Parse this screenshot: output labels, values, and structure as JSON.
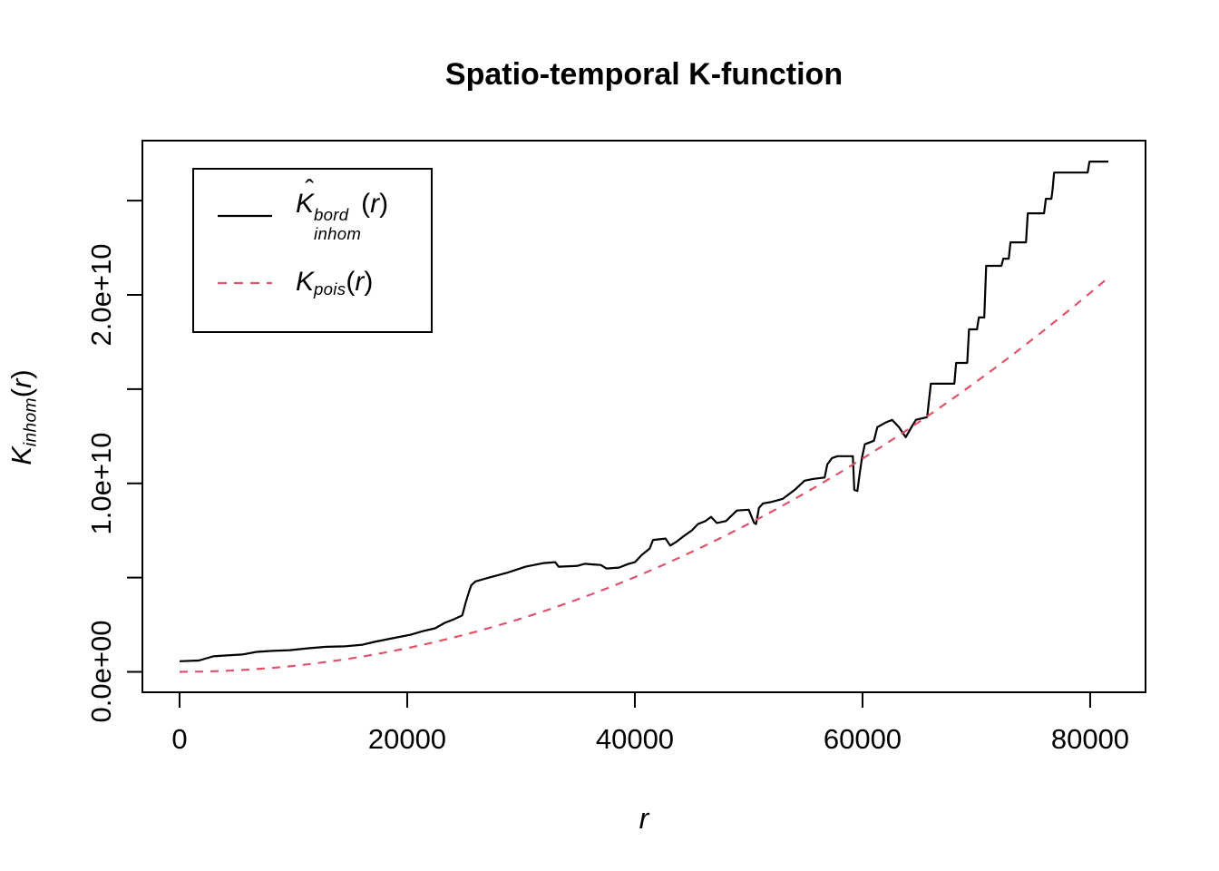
{
  "title": "Spatio-temporal K-function",
  "colors": {
    "foreground": "#000000",
    "background": "#FFFFFF",
    "poisson_line": "#DF536B"
  },
  "axes": {
    "x": {
      "label_var": "r"
    },
    "y": {
      "label": {
        "base": "K",
        "sub": "inhom",
        "open": "(",
        "var": "r",
        "close": ")"
      }
    }
  },
  "legend": {
    "entries": [
      {
        "base": "K",
        "hat": "ˆ",
        "sup": "bord",
        "sub": "inhom",
        "open": "(",
        "var": "r",
        "close": ")"
      },
      {
        "base": "K",
        "sub": "pois",
        "open": "(",
        "var": "r",
        "close": ")"
      }
    ]
  },
  "chart_data": {
    "type": "line",
    "title": "Spatio-temporal K-function",
    "xlabel": "r",
    "ylabel": "K_inhom(r)",
    "grid": false,
    "legend_position": "top-left",
    "xlim": [
      -3264,
      84864
    ],
    "ylim_e10": [
      -0.1084,
      2.8184
    ],
    "y_unit": "1e+10",
    "x_ticks": [
      0,
      20000,
      40000,
      60000,
      80000
    ],
    "x_tick_labels": [
      "0",
      "20000",
      "40000",
      "60000",
      "80000"
    ],
    "y_ticks_e10": [
      0,
      0.5,
      1.0,
      1.5,
      2.0,
      2.5
    ],
    "y_tick_labels": [
      {
        "value_e10": 0,
        "label": "0.0e+00"
      },
      {
        "value_e10": 1,
        "label": "1.0e+10"
      },
      {
        "value_e10": 2,
        "label": "2.0e+10"
      }
    ],
    "series": [
      {
        "name": "Khat_inhom_bord",
        "label": "Khat^bord_inhom(r)",
        "style": "solid",
        "color": "#000000",
        "points_r_Ke10": [
          [
            0,
            0.056
          ],
          [
            1700,
            0.06
          ],
          [
            2950,
            0.082
          ],
          [
            4140,
            0.087
          ],
          [
            5500,
            0.092
          ],
          [
            6770,
            0.106
          ],
          [
            8120,
            0.111
          ],
          [
            9710,
            0.115
          ],
          [
            11300,
            0.125
          ],
          [
            12900,
            0.133
          ],
          [
            14500,
            0.135
          ],
          [
            16080,
            0.144
          ],
          [
            17100,
            0.159
          ],
          [
            18700,
            0.178
          ],
          [
            20300,
            0.197
          ],
          [
            21400,
            0.216
          ],
          [
            22450,
            0.231
          ],
          [
            23300,
            0.26
          ],
          [
            24040,
            0.277
          ],
          [
            24840,
            0.3
          ],
          [
            25150,
            0.37
          ],
          [
            25450,
            0.43
          ],
          [
            25640,
            0.46
          ],
          [
            26000,
            0.48
          ],
          [
            27200,
            0.5
          ],
          [
            28800,
            0.526
          ],
          [
            30400,
            0.558
          ],
          [
            32000,
            0.577
          ],
          [
            33000,
            0.582
          ],
          [
            33300,
            0.558
          ],
          [
            34950,
            0.562
          ],
          [
            35600,
            0.573
          ],
          [
            36300,
            0.57
          ],
          [
            37000,
            0.567
          ],
          [
            37500,
            0.548
          ],
          [
            38600,
            0.553
          ],
          [
            39400,
            0.572
          ],
          [
            40000,
            0.582
          ],
          [
            40600,
            0.62
          ],
          [
            41300,
            0.654
          ],
          [
            41600,
            0.7
          ],
          [
            42700,
            0.707
          ],
          [
            43100,
            0.67
          ],
          [
            43600,
            0.688
          ],
          [
            44300,
            0.72
          ],
          [
            45000,
            0.75
          ],
          [
            45540,
            0.784
          ],
          [
            46200,
            0.8
          ],
          [
            46700,
            0.822
          ],
          [
            47200,
            0.79
          ],
          [
            48000,
            0.8
          ],
          [
            48960,
            0.856
          ],
          [
            50000,
            0.86
          ],
          [
            50480,
            0.79
          ],
          [
            50650,
            0.784
          ],
          [
            50900,
            0.87
          ],
          [
            51270,
            0.894
          ],
          [
            51900,
            0.9
          ],
          [
            53000,
            0.918
          ],
          [
            54060,
            0.966
          ],
          [
            54900,
            1.014
          ],
          [
            55700,
            1.024
          ],
          [
            56670,
            1.031
          ],
          [
            56900,
            1.1
          ],
          [
            57320,
            1.134
          ],
          [
            57800,
            1.144
          ],
          [
            59150,
            1.144
          ],
          [
            59280,
            0.966
          ],
          [
            59550,
            0.96
          ],
          [
            59750,
            1.05
          ],
          [
            59950,
            1.134
          ],
          [
            60200,
            1.207
          ],
          [
            61000,
            1.226
          ],
          [
            61300,
            1.298
          ],
          [
            62000,
            1.322
          ],
          [
            62600,
            1.337
          ],
          [
            63200,
            1.298
          ],
          [
            63800,
            1.245
          ],
          [
            64300,
            1.298
          ],
          [
            64700,
            1.337
          ],
          [
            65680,
            1.351
          ],
          [
            66000,
            1.529
          ],
          [
            68070,
            1.529
          ],
          [
            68230,
            1.639
          ],
          [
            69200,
            1.639
          ],
          [
            69360,
            1.817
          ],
          [
            70060,
            1.817
          ],
          [
            70220,
            1.88
          ],
          [
            70700,
            1.88
          ],
          [
            70860,
            2.154
          ],
          [
            72200,
            2.154
          ],
          [
            72370,
            2.192
          ],
          [
            72850,
            2.192
          ],
          [
            73000,
            2.279
          ],
          [
            74360,
            2.279
          ],
          [
            74520,
            2.433
          ],
          [
            75950,
            2.433
          ],
          [
            76110,
            2.51
          ],
          [
            76590,
            2.51
          ],
          [
            76700,
            2.558
          ],
          [
            76830,
            2.649
          ],
          [
            79780,
            2.649
          ],
          [
            79940,
            2.707
          ],
          [
            81600,
            2.707
          ]
        ]
      },
      {
        "name": "K_pois",
        "label": "K_pois(r)",
        "style": "dashed",
        "color": "#DF536B",
        "formula": "pi*r^2",
        "points_r_Ke10": [
          [
            0,
            0
          ],
          [
            2000,
            0.0013
          ],
          [
            4000,
            0.005
          ],
          [
            6000,
            0.0113
          ],
          [
            8000,
            0.0201
          ],
          [
            10000,
            0.0314
          ],
          [
            12000,
            0.0452
          ],
          [
            14000,
            0.0616
          ],
          [
            16000,
            0.0804
          ],
          [
            18000,
            0.1018
          ],
          [
            20000,
            0.1257
          ],
          [
            22000,
            0.152
          ],
          [
            24000,
            0.181
          ],
          [
            26000,
            0.2124
          ],
          [
            28000,
            0.2463
          ],
          [
            30000,
            0.2827
          ],
          [
            32000,
            0.3217
          ],
          [
            34000,
            0.3632
          ],
          [
            36000,
            0.4071
          ],
          [
            38000,
            0.4536
          ],
          [
            40000,
            0.5027
          ],
          [
            42000,
            0.5542
          ],
          [
            44000,
            0.6082
          ],
          [
            46000,
            0.6648
          ],
          [
            48000,
            0.7238
          ],
          [
            50000,
            0.7854
          ],
          [
            52000,
            0.8495
          ],
          [
            54000,
            0.9161
          ],
          [
            56000,
            0.9852
          ],
          [
            58000,
            1.0568
          ],
          [
            60000,
            1.131
          ],
          [
            62000,
            1.2076
          ],
          [
            64000,
            1.2868
          ],
          [
            66000,
            1.3685
          ],
          [
            68000,
            1.4527
          ],
          [
            70000,
            1.5394
          ],
          [
            72000,
            1.6286
          ],
          [
            74000,
            1.7203
          ],
          [
            76000,
            1.8146
          ],
          [
            78000,
            1.9113
          ],
          [
            80000,
            2.0106
          ],
          [
            81600,
            2.0917
          ]
        ]
      }
    ]
  }
}
